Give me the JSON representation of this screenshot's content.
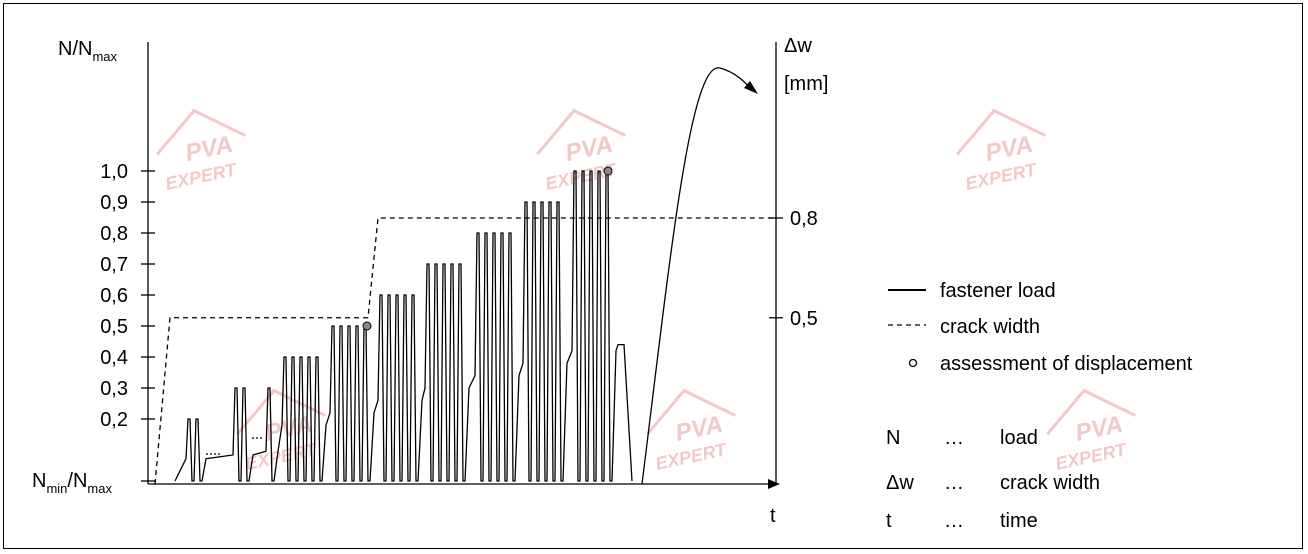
{
  "chart_data": {
    "type": "line",
    "y_left": {
      "label_main": "N/N",
      "label_sub": "max",
      "ticks": [
        "1,0",
        "0,9",
        "0,8",
        "0,7",
        "0,6",
        "0,5",
        "0,4",
        "0,3",
        "0,2"
      ],
      "tick_values": [
        1.0,
        0.9,
        0.8,
        0.7,
        0.6,
        0.5,
        0.4,
        0.3,
        0.2
      ],
      "min_label_main": "N",
      "min_label_sub": "min",
      "min_label_slash": "/N",
      "min_label_sub2": "max"
    },
    "y_right": {
      "label": "Δw",
      "unit": "[mm]",
      "ticks": [
        "0,8",
        "0,5"
      ],
      "tick_values": [
        0.8,
        0.5
      ]
    },
    "x_axis": {
      "label": "t"
    },
    "load_levels": [
      0.2,
      0.3,
      0.4,
      0.5,
      0.6,
      0.7,
      0.8,
      0.9,
      1.0
    ],
    "crack_width_steps": [
      0.5,
      0.8
    ],
    "legend": {
      "fastener_load": "fastener load",
      "crack_width": "crack width",
      "assessment": "assessment of displacement"
    },
    "symbols": [
      {
        "sym": "N",
        "dots": "…",
        "desc": "load"
      },
      {
        "sym": "Δw",
        "dots": "…",
        "desc": "crack width"
      },
      {
        "sym": "t",
        "dots": "…",
        "desc": "time"
      }
    ]
  },
  "watermark": {
    "line1": "PVA",
    "line2": "EXPERT"
  },
  "colors": {
    "line": "#000000",
    "marker": "#888888",
    "watermark": "#f2c9c9"
  }
}
